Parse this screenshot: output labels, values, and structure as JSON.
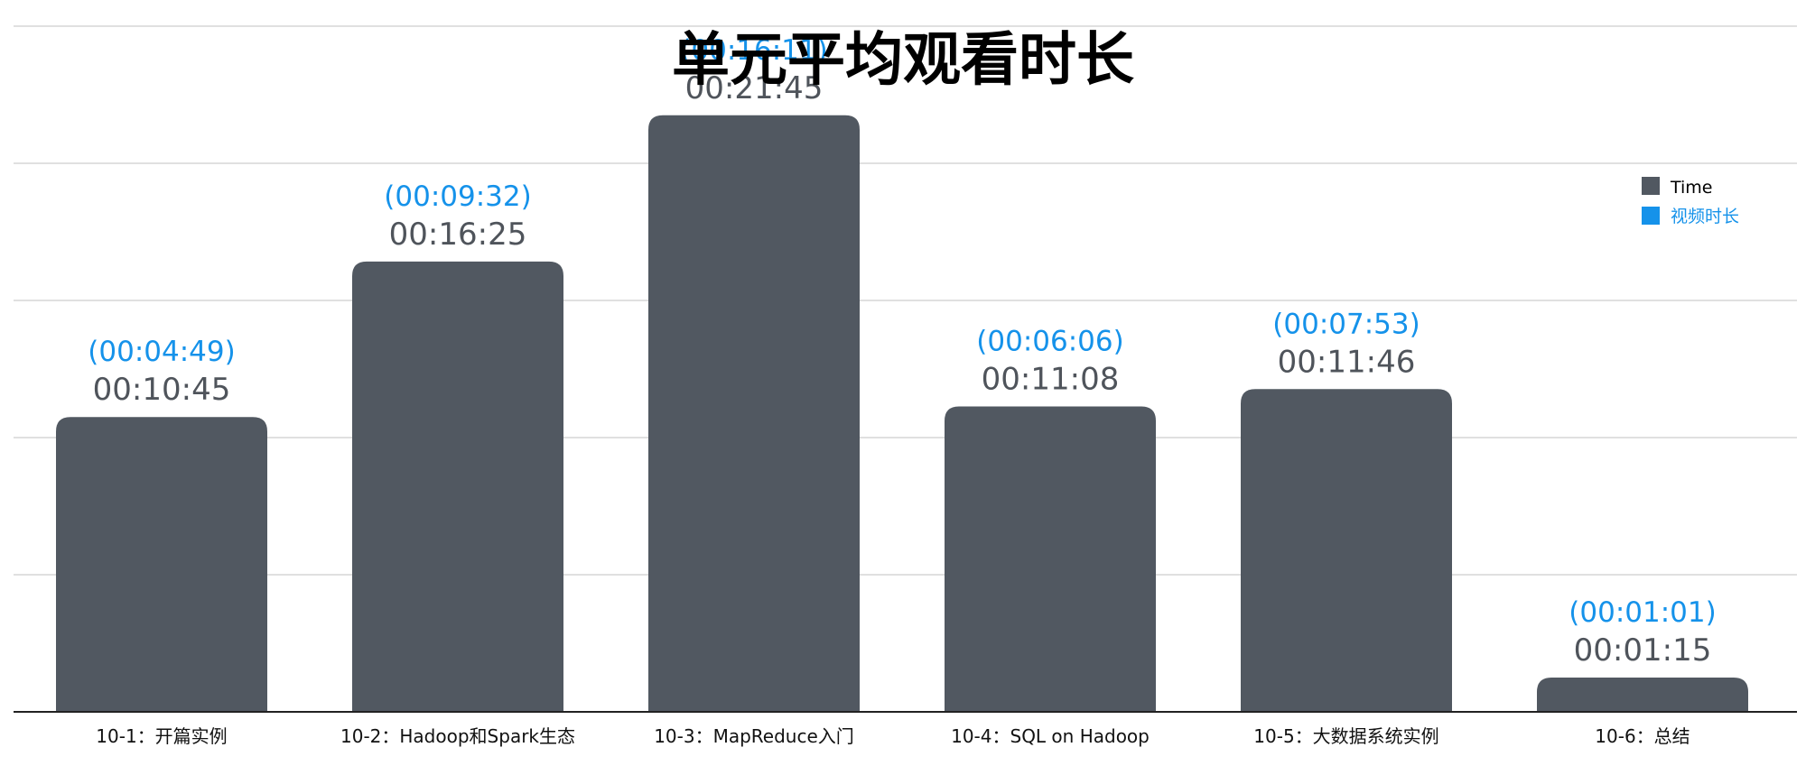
{
  "colors": {
    "bar": "#515861",
    "video_label": "#1592ea",
    "time_label": "#4f545b",
    "gridline": "#d6d6d6",
    "axis": "#222222",
    "title": "#000000",
    "legend_time": "#515861",
    "legend_video": "#1592ea"
  },
  "chart_data": {
    "type": "bar",
    "title": "单元平均观看时长",
    "xlabel": "",
    "ylabel": "",
    "grid": true,
    "legend_position": "top-right",
    "categories": [
      "10-1：开篇实例",
      "10-2：Hadoop和Spark生态",
      "10-3：MapReduce入门",
      "10-4：SQL on Hadoop",
      "10-5：大数据系统实例",
      "10-6：总结"
    ],
    "series": [
      {
        "name": "Time",
        "values": [
          "00:10:45",
          "00:16:25",
          "00:21:45",
          "00:11:08",
          "00:11:46",
          "00:01:15"
        ],
        "labels": [
          "00:10:45",
          "00:16:25",
          "00:21:45",
          "00:11:08",
          "00:11:46",
          "00:01:15"
        ],
        "drawn_as": "bars"
      },
      {
        "name": "视频时长",
        "values": [
          "00:04:49",
          "00:09:32",
          "00:16:11",
          "00:06:06",
          "00:07:53",
          "00:01:01"
        ],
        "labels": [
          "(00:04:49)",
          "(00:09:32)",
          "(00:16:11)",
          "(00:06:06)",
          "(00:07:53)",
          "(00:01:01)"
        ],
        "drawn_as": "labels"
      }
    ],
    "ylim": [
      "00:00:00",
      "00:25:00"
    ]
  }
}
